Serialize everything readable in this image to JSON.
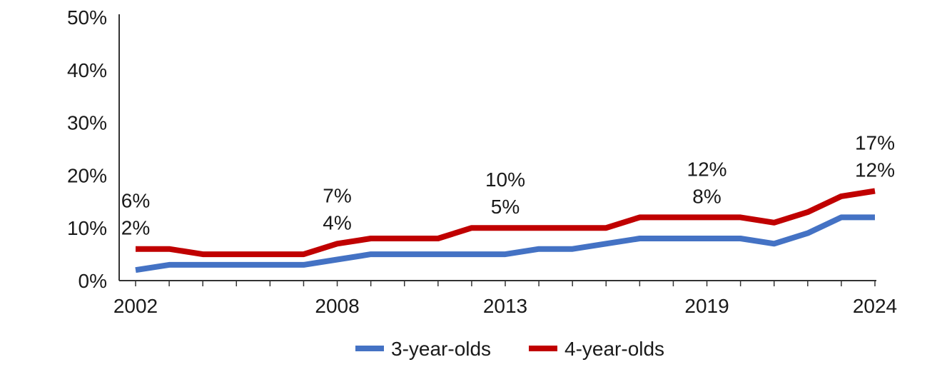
{
  "chart_data": {
    "type": "line",
    "title": "",
    "xlabel": "",
    "ylabel": "",
    "x": [
      2002,
      2003,
      2004,
      2005,
      2006,
      2007,
      2008,
      2009,
      2010,
      2011,
      2012,
      2013,
      2014,
      2015,
      2016,
      2017,
      2018,
      2019,
      2020,
      2021,
      2022,
      2023,
      2024
    ],
    "x_tick_labels": [
      "2002",
      "2008",
      "2013",
      "2019",
      "2024"
    ],
    "x_tick_values": [
      2002,
      2008,
      2013,
      2019,
      2024
    ],
    "ylim": [
      0,
      50
    ],
    "y_ticks": [
      0,
      10,
      20,
      30,
      40,
      50
    ],
    "y_tick_labels": [
      "0%",
      "10%",
      "20%",
      "30%",
      "40%",
      "50%"
    ],
    "grid": false,
    "legend_position": "bottom",
    "series": [
      {
        "name": "3-year-olds",
        "color": "#4472c4",
        "values": [
          2,
          3,
          3,
          3,
          3,
          3,
          4,
          5,
          5,
          5,
          5,
          5,
          6,
          6,
          7,
          8,
          8,
          8,
          8,
          7,
          9,
          12,
          12
        ]
      },
      {
        "name": "4-year-olds",
        "color": "#c00000",
        "values": [
          6,
          6,
          5,
          5,
          5,
          5,
          7,
          8,
          8,
          8,
          10,
          10,
          10,
          10,
          10,
          12,
          12,
          12,
          12,
          11,
          13,
          16,
          17
        ]
      }
    ],
    "annotations": [
      {
        "x": 2002,
        "top": "6%",
        "bottom": "2%"
      },
      {
        "x": 2008,
        "top": "7%",
        "bottom": "4%"
      },
      {
        "x": 2013,
        "top": "10%",
        "bottom": "5%"
      },
      {
        "x": 2019,
        "top": "12%",
        "bottom": "8%"
      },
      {
        "x": 2024,
        "top": "17%",
        "bottom": "12%"
      }
    ]
  }
}
